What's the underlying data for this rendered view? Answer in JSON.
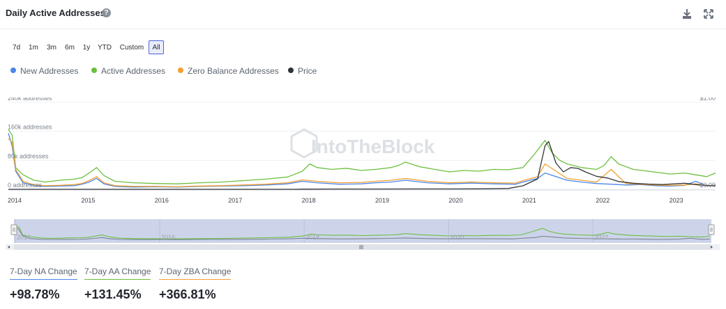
{
  "header": {
    "title": "Daily Active Addresses",
    "help_icon": "question-circle-icon",
    "download_icon": "download-icon",
    "fullscreen_icon": "expand-arrows-icon"
  },
  "ranges": [
    {
      "label": "7d",
      "active": false
    },
    {
      "label": "1m",
      "active": false
    },
    {
      "label": "3m",
      "active": false
    },
    {
      "label": "6m",
      "active": false
    },
    {
      "label": "1y",
      "active": false
    },
    {
      "label": "YTD",
      "active": false
    },
    {
      "label": "Custom",
      "active": false
    },
    {
      "label": "All",
      "active": true
    }
  ],
  "watermark": "IntoTheBlock",
  "colors": {
    "new": "#4a86e8",
    "active": "#6cbf3e",
    "zero": "#f0a030",
    "price": "#303336"
  },
  "chart_data": {
    "type": "line",
    "x_axis": {
      "ticks": [
        "2014",
        "2015",
        "2016",
        "2017",
        "2018",
        "2019",
        "2020",
        "2021",
        "2022",
        "2023"
      ],
      "range": [
        2014.0,
        2023.62
      ]
    },
    "y_axis_left": {
      "ticks": [
        "240k addresses",
        "160k addresses",
        "80k addresses",
        "0 addresses"
      ],
      "range": [
        0,
        240000
      ]
    },
    "y_axis_right": {
      "ticks": [
        "$1.00",
        "$0.00"
      ],
      "range": [
        0,
        1.0
      ]
    },
    "grid": true,
    "legend_position": "top-left",
    "series": [
      {
        "name": "New Addresses",
        "axis": "left",
        "x": [
          2014.0,
          2014.05,
          2014.1,
          2014.2,
          2014.35,
          2014.5,
          2014.7,
          2014.9,
          2015.0,
          2015.1,
          2015.2,
          2015.3,
          2015.45,
          2015.7,
          2016.0,
          2016.3,
          2016.6,
          2016.9,
          2017.2,
          2017.5,
          2017.8,
          2018.0,
          2018.2,
          2018.5,
          2018.8,
          2019.0,
          2019.2,
          2019.4,
          2019.7,
          2020.0,
          2020.3,
          2020.6,
          2020.9,
          2021.0,
          2021.2,
          2021.3,
          2021.45,
          2021.6,
          2021.8,
          2022.0,
          2022.2,
          2022.4,
          2022.6,
          2022.8,
          2023.0,
          2023.2,
          2023.35,
          2023.5,
          2023.62
        ],
        "y": [
          155000,
          120000,
          50000,
          18000,
          10000,
          8000,
          9000,
          10000,
          14000,
          20000,
          30000,
          15000,
          8000,
          6000,
          7000,
          6000,
          8000,
          9000,
          10000,
          12000,
          15000,
          22000,
          18000,
          14000,
          15000,
          18000,
          20000,
          25000,
          18000,
          15000,
          17000,
          15000,
          14000,
          20000,
          30000,
          45000,
          35000,
          25000,
          20000,
          16000,
          14000,
          12000,
          13000,
          10000,
          9000,
          11000,
          22000,
          9000,
          12000
        ]
      },
      {
        "name": "Active Addresses",
        "axis": "left",
        "x": [
          2014.0,
          2014.05,
          2014.1,
          2014.2,
          2014.35,
          2014.5,
          2014.7,
          2014.9,
          2015.0,
          2015.1,
          2015.2,
          2015.3,
          2015.45,
          2015.7,
          2016.0,
          2016.3,
          2016.6,
          2016.9,
          2017.2,
          2017.5,
          2017.8,
          2018.0,
          2018.1,
          2018.2,
          2018.4,
          2018.6,
          2018.8,
          2019.0,
          2019.2,
          2019.3,
          2019.4,
          2019.6,
          2019.8,
          2020.0,
          2020.2,
          2020.4,
          2020.6,
          2020.8,
          2021.0,
          2021.15,
          2021.3,
          2021.4,
          2021.5,
          2021.6,
          2021.8,
          2022.0,
          2022.1,
          2022.2,
          2022.3,
          2022.5,
          2022.7,
          2022.9,
          2023.0,
          2023.2,
          2023.35,
          2023.5,
          2023.62
        ],
        "y": [
          165000,
          150000,
          60000,
          40000,
          25000,
          20000,
          25000,
          28000,
          32000,
          45000,
          60000,
          38000,
          22000,
          18000,
          16000,
          15000,
          18000,
          20000,
          24000,
          28000,
          34000,
          50000,
          70000,
          60000,
          55000,
          58000,
          52000,
          55000,
          60000,
          65000,
          75000,
          62000,
          55000,
          48000,
          52000,
          50000,
          55000,
          54000,
          60000,
          95000,
          135000,
          100000,
          80000,
          70000,
          60000,
          55000,
          65000,
          90000,
          70000,
          55000,
          50000,
          45000,
          42000,
          45000,
          40000,
          35000,
          45000
        ]
      },
      {
        "name": "Zero Balance Addresses",
        "axis": "left",
        "x": [
          2014.0,
          2014.05,
          2014.1,
          2014.2,
          2014.35,
          2014.5,
          2014.7,
          2014.9,
          2015.0,
          2015.1,
          2015.2,
          2015.3,
          2015.45,
          2015.7,
          2016.0,
          2016.3,
          2016.6,
          2016.9,
          2017.2,
          2017.5,
          2017.8,
          2018.0,
          2018.2,
          2018.5,
          2018.8,
          2019.0,
          2019.2,
          2019.4,
          2019.7,
          2020.0,
          2020.3,
          2020.6,
          2020.9,
          2021.0,
          2021.2,
          2021.3,
          2021.45,
          2021.6,
          2021.8,
          2022.0,
          2022.2,
          2022.4,
          2022.6,
          2022.8,
          2023.0,
          2023.2,
          2023.35,
          2023.5,
          2023.62
        ],
        "y": [
          140000,
          130000,
          55000,
          22000,
          12000,
          10000,
          11000,
          13000,
          16000,
          24000,
          35000,
          18000,
          10000,
          8000,
          8000,
          7000,
          9000,
          10000,
          12000,
          14000,
          18000,
          26000,
          22000,
          18000,
          19000,
          22000,
          25000,
          30000,
          22000,
          18000,
          20000,
          18000,
          17000,
          24000,
          35000,
          70000,
          50000,
          30000,
          25000,
          20000,
          55000,
          16000,
          14000,
          12000,
          11000,
          12000,
          15000,
          10000,
          11000
        ]
      },
      {
        "name": "Price",
        "axis": "right",
        "x": [
          2014.0,
          2017.9,
          2018.0,
          2018.5,
          2019.0,
          2019.5,
          2020.0,
          2020.5,
          2020.8,
          2021.0,
          2021.1,
          2021.2,
          2021.3,
          2021.35,
          2021.45,
          2021.55,
          2021.65,
          2021.75,
          2021.85,
          2022.0,
          2022.15,
          2022.3,
          2022.5,
          2022.7,
          2022.9,
          2023.0,
          2023.2,
          2023.4,
          2023.62
        ],
        "y": [
          0.0,
          0.0,
          0.002,
          0.003,
          0.003,
          0.004,
          0.004,
          0.006,
          0.01,
          0.04,
          0.08,
          0.12,
          0.5,
          0.55,
          0.3,
          0.2,
          0.25,
          0.24,
          0.2,
          0.15,
          0.13,
          0.09,
          0.07,
          0.06,
          0.055,
          0.06,
          0.07,
          0.05,
          0.04
        ]
      }
    ]
  },
  "stats": [
    {
      "label": "7-Day NA Change",
      "value": "+98.78%",
      "color": "#4a86e8"
    },
    {
      "label": "7-Day AA Change",
      "value": "+131.45%",
      "color": "#6cbf3e"
    },
    {
      "label": "7-Day ZBA Change",
      "value": "+366.81%",
      "color": "#f0a030"
    }
  ]
}
